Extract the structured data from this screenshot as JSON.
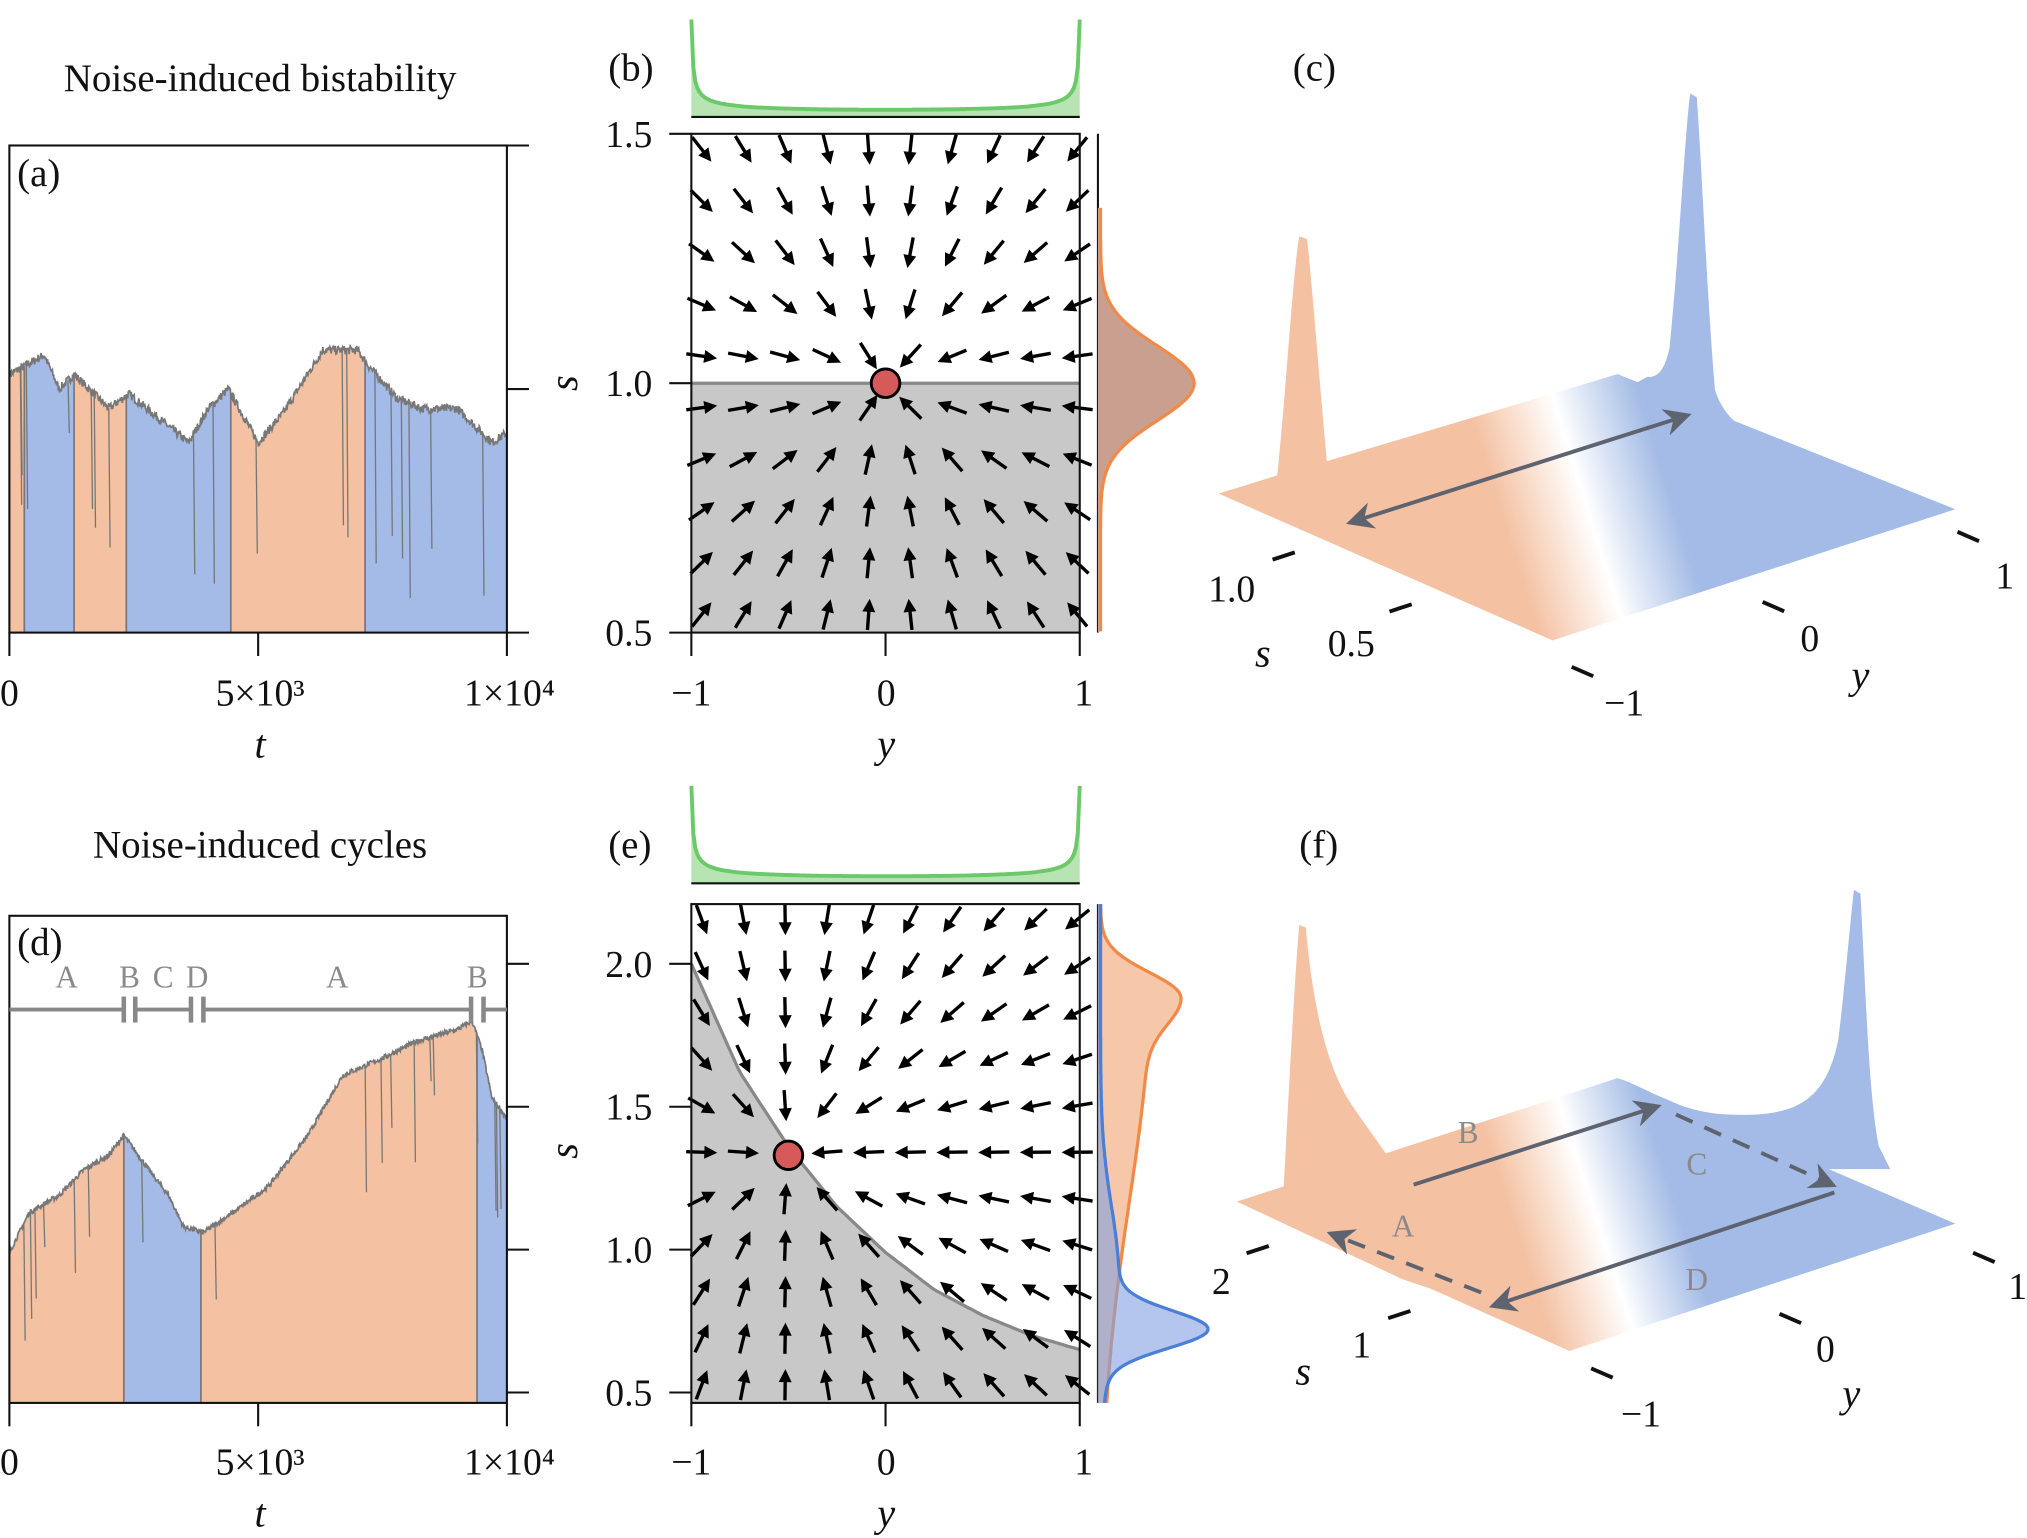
{
  "colors": {
    "orange": "#f4c1a2",
    "blue": "#a3bbe6",
    "trace": "#777777",
    "green_line": "#6cc96a",
    "green_fill": "#b7e4b2",
    "fixed_point": "#d65a5a",
    "shade": "#c8c8c8",
    "separatrix": "#888888",
    "orange_line": "#f08a48",
    "blue_line": "#4a7fd8",
    "overlap": "#c9a090",
    "arrow3d": "#5e6370"
  },
  "chart_data": [
    {
      "panel": "(a)",
      "title": "Noise-induced bistability",
      "type": "area",
      "xlabel": "t",
      "xlim": [
        0,
        10000
      ],
      "ylim": [
        0.5,
        1.5
      ],
      "xtick_values": [
        0,
        5000,
        10000
      ],
      "xtick_labels": [
        "0",
        "5×10³",
        "1×10⁴"
      ],
      "ytick_values": [
        0.5,
        1.0,
        1.5
      ],
      "series": {
        "t": [
          0,
          700,
          1000,
          1300,
          2000,
          2400,
          3000,
          3600,
          4000,
          4400,
          5000,
          5500,
          6300,
          7000,
          7200,
          7800,
          8300,
          9000,
          9700,
          10000
        ],
        "s": [
          1.03,
          1.07,
          1.0,
          1.03,
          0.96,
          0.99,
          0.94,
          0.89,
          0.96,
          1.0,
          0.89,
          0.95,
          1.08,
          1.08,
          1.05,
          0.98,
          0.96,
          0.96,
          0.89,
          0.91
        ]
      },
      "regimes": [
        {
          "from": 0,
          "to": 300,
          "color": "orange"
        },
        {
          "from": 300,
          "to": 1300,
          "color": "blue"
        },
        {
          "from": 1300,
          "to": 2350,
          "color": "orange"
        },
        {
          "from": 2350,
          "to": 4450,
          "color": "blue"
        },
        {
          "from": 4450,
          "to": 7150,
          "color": "orange"
        },
        {
          "from": 7150,
          "to": 10000,
          "color": "blue"
        }
      ]
    },
    {
      "panel": "(b)",
      "type": "vector-field",
      "xlabel": "y",
      "ylabel": "s",
      "xlim": [
        -1,
        1
      ],
      "ylim": [
        0.5,
        1.5
      ],
      "xtick_values": [
        -1,
        0,
        1
      ],
      "xtick_labels": [
        "−1",
        "0",
        "1"
      ],
      "ytick_values": [
        0.5,
        1.0,
        1.5
      ],
      "ytick_labels": [
        "0.5",
        "1.0",
        "1.5"
      ],
      "fixed_point": {
        "y": 0,
        "s": 1.0
      },
      "separatrix": {
        "y": [
          -1,
          1
        ],
        "s": [
          1.0,
          1.0
        ]
      },
      "marginal_top": "U-shaped density in y with peaks at y = ±1",
      "marginal_right": [
        {
          "color": "orange",
          "mode": 1.0
        }
      ]
    },
    {
      "panel": "(c)",
      "type": "surface-3d",
      "xlabel": "y",
      "ylabel": "s",
      "ytick_labels": [
        "−1",
        "0",
        "1"
      ],
      "stick_labels": [
        "1.0",
        "0.5"
      ],
      "peaks": [
        {
          "color": "orange",
          "y": -1
        },
        {
          "color": "blue",
          "y": 1
        }
      ],
      "arrows": [
        {
          "style": "solid",
          "direction": "both"
        }
      ]
    },
    {
      "panel": "(d)",
      "title": "Noise-induced cycles",
      "type": "area",
      "xlabel": "t",
      "xlim": [
        0,
        10000
      ],
      "ylim": [
        0.46,
        2.17
      ],
      "xtick_values": [
        0,
        5000,
        10000
      ],
      "xtick_labels": [
        "0",
        "5×10³",
        "1×10⁴"
      ],
      "ytick_values": [
        0.5,
        1.0,
        1.5,
        2.0
      ],
      "series": {
        "t": [
          0,
          400,
          1000,
          1500,
          2000,
          2300,
          2800,
          3200,
          3500,
          3900,
          4500,
          5200,
          6000,
          6700,
          7500,
          8200,
          9000,
          9300,
          9500,
          9700,
          10000
        ],
        "s": [
          0.99,
          1.13,
          1.19,
          1.28,
          1.33,
          1.4,
          1.28,
          1.19,
          1.08,
          1.06,
          1.13,
          1.22,
          1.4,
          1.61,
          1.67,
          1.73,
          1.77,
          1.8,
          1.7,
          1.53,
          1.46
        ]
      },
      "regimes": [
        {
          "from": 0,
          "to": 2300,
          "color": "orange"
        },
        {
          "from": 2300,
          "to": 3850,
          "color": "blue"
        },
        {
          "from": 3850,
          "to": 9400,
          "color": "orange"
        },
        {
          "from": 9400,
          "to": 10000,
          "color": "blue"
        }
      ],
      "phases": [
        {
          "label": "A",
          "from": 0,
          "to": 2300
        },
        {
          "label": "B",
          "from": 2300,
          "to": 2530
        },
        {
          "label": "C",
          "from": 2530,
          "to": 3650
        },
        {
          "label": "D",
          "from": 3650,
          "to": 3900
        },
        {
          "label": "A",
          "from": 3900,
          "to": 9280
        },
        {
          "label": "B",
          "from": 9280,
          "to": 9530
        },
        {
          "label": "",
          "from": 9530,
          "to": 10000
        }
      ]
    },
    {
      "panel": "(e)",
      "type": "vector-field",
      "xlabel": "y",
      "ylabel": "s",
      "xlim": [
        -1,
        1
      ],
      "ylim": [
        0.46,
        2.2
      ],
      "xtick_values": [
        -1,
        0,
        1
      ],
      "xtick_labels": [
        "−1",
        "0",
        "1"
      ],
      "ytick_values": [
        0.5,
        1.0,
        1.5,
        2.0
      ],
      "ytick_labels": [
        "0.5",
        "1.0",
        "1.5",
        "2.0"
      ],
      "fixed_point": {
        "y": -0.5,
        "s": 1.33
      },
      "separatrix": {
        "y": [
          -1,
          -0.75,
          -0.5,
          -0.25,
          0,
          0.25,
          0.5,
          0.75,
          1
        ],
        "s": [
          2.0,
          1.62,
          1.36,
          1.15,
          0.99,
          0.86,
          0.77,
          0.7,
          0.65
        ]
      },
      "marginal_top": "U-shaped density in y with peaks at y = ±1",
      "marginal_right": [
        {
          "color": "orange",
          "mode": 1.88
        },
        {
          "color": "blue",
          "mode": 0.72
        }
      ]
    },
    {
      "panel": "(f)",
      "type": "surface-3d",
      "xlabel": "y",
      "ylabel": "s",
      "ytick_labels": [
        "−1",
        "0",
        "1"
      ],
      "stick_labels": [
        "2",
        "1"
      ],
      "peaks": [
        {
          "color": "orange",
          "y": -1
        },
        {
          "color": "blue",
          "y": 1
        }
      ],
      "arrows": [
        {
          "label": "A",
          "style": "dashed"
        },
        {
          "label": "B",
          "style": "solid"
        },
        {
          "label": "C",
          "style": "dashed"
        },
        {
          "label": "D",
          "style": "solid"
        }
      ]
    }
  ]
}
